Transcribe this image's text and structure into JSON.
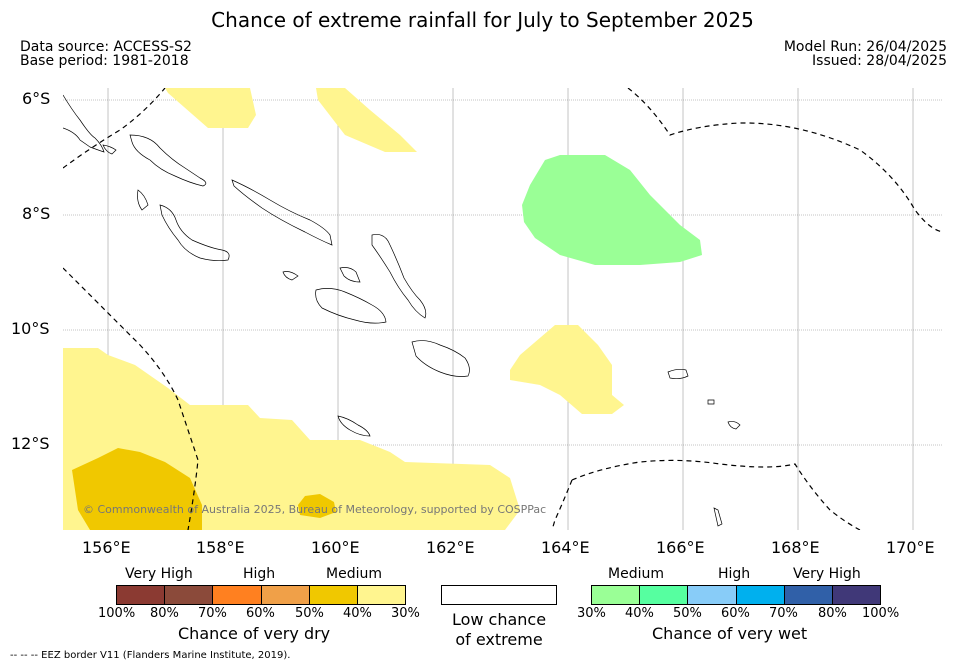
{
  "title": "Chance of extreme rainfall for July to September 2025",
  "meta": {
    "data_source": "Data source: ACCESS-S2",
    "base_period": "Base period: 1981-2018",
    "model_run": "Model Run: 26/04/2025",
    "issued": "Issued: 28/04/2025"
  },
  "axes": {
    "lat_labels": [
      "6°S",
      "8°S",
      "10°S",
      "12°S"
    ],
    "lon_labels": [
      "156°E",
      "158°E",
      "160°E",
      "162°E",
      "164°E",
      "166°E",
      "168°E",
      "170°E"
    ]
  },
  "copyright": "© Commonwealth of Australia 2025, Bureau of Meteorology, supported by COSPPac",
  "legend": {
    "dry": {
      "headings": [
        "Very High",
        "High",
        "Medium"
      ],
      "colors": [
        "#8b3a32",
        "#8b4a3a",
        "#ff8020",
        "#f0a048",
        "#f0c800",
        "#fff58f"
      ],
      "ticks": [
        "100%",
        "80%",
        "70%",
        "60%",
        "50%",
        "40%",
        "30%"
      ],
      "title": "Chance of very dry"
    },
    "neutral": {
      "line1": "Low chance",
      "line2": "of extreme"
    },
    "wet": {
      "headings": [
        "Medium",
        "High",
        "Very High"
      ],
      "colors": [
        "#9aff96",
        "#56ffa0",
        "#88ccf8",
        "#00b0ee",
        "#3060a8",
        "#403878"
      ],
      "ticks": [
        "30%",
        "40%",
        "50%",
        "60%",
        "70%",
        "80%",
        "100%"
      ],
      "title": "Chance of very wet"
    }
  },
  "footnote": "--  --  -- EEZ border V11 (Flanders Marine Institute, 2019).",
  "colors": {
    "dry_medium": "#fff58f",
    "dry_medium_dark": "#f0c800",
    "wet_medium": "#9aff96"
  }
}
